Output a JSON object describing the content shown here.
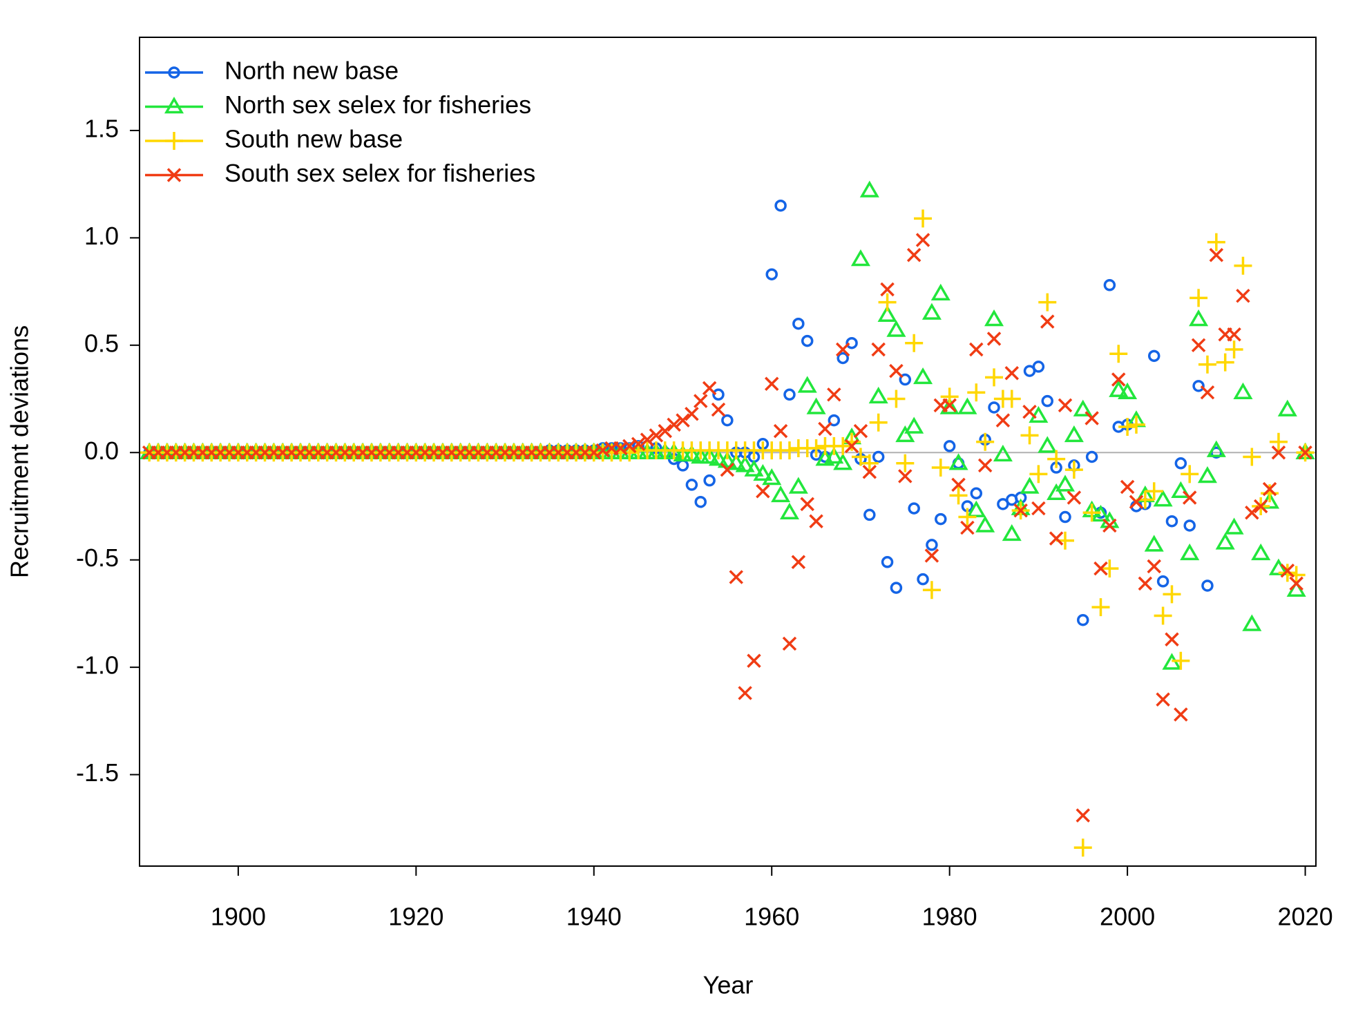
{
  "chart_data": {
    "type": "scatter",
    "x_label": "Year",
    "y_label": "Recruitment deviations",
    "xlim": [
      1888.9,
      2021.2
    ],
    "ylim": [
      -1.926,
      1.934
    ],
    "xticks": [
      1900,
      1920,
      1940,
      1960,
      1980,
      2000,
      2020
    ],
    "yticks": [
      -1.5,
      {
        "value": -1,
        "label": "-1.0"
      },
      -0.5,
      {
        "value": 0,
        "label": "0.0"
      },
      0.5,
      {
        "value": 1,
        "label": "1.0"
      },
      1.5
    ],
    "hline": 0,
    "legend": "top-left",
    "x": [
      1890,
      1891,
      1892,
      1893,
      1894,
      1895,
      1896,
      1897,
      1898,
      1899,
      1900,
      1901,
      1902,
      1903,
      1904,
      1905,
      1906,
      1907,
      1908,
      1909,
      1910,
      1911,
      1912,
      1913,
      1914,
      1915,
      1916,
      1917,
      1918,
      1919,
      1920,
      1921,
      1922,
      1923,
      1924,
      1925,
      1926,
      1927,
      1928,
      1929,
      1930,
      1931,
      1932,
      1933,
      1934,
      1935,
      1936,
      1937,
      1938,
      1939,
      1940,
      1941,
      1942,
      1943,
      1944,
      1945,
      1946,
      1947,
      1948,
      1949,
      1950,
      1951,
      1952,
      1953,
      1954,
      1955,
      1956,
      1957,
      1958,
      1959,
      1960,
      1961,
      1962,
      1963,
      1964,
      1965,
      1966,
      1967,
      1968,
      1969,
      1970,
      1971,
      1972,
      1973,
      1974,
      1975,
      1976,
      1977,
      1978,
      1979,
      1980,
      1981,
      1982,
      1983,
      1984,
      1985,
      1986,
      1987,
      1988,
      1989,
      1990,
      1991,
      1992,
      1993,
      1994,
      1995,
      1996,
      1997,
      1998,
      1999,
      2000,
      2001,
      2002,
      2003,
      2004,
      2005,
      2006,
      2007,
      2008,
      2009,
      2010,
      2011,
      2012,
      2013,
      2014,
      2015,
      2016,
      2017,
      2018,
      2019,
      2020
    ],
    "series": [
      {
        "name": "North new base",
        "color": "#1464e6",
        "marker": "circle",
        "values": [
          0,
          0,
          0,
          0,
          0,
          0,
          0,
          0,
          0,
          0,
          0,
          0,
          0,
          0,
          0,
          0,
          0,
          0,
          0,
          0,
          0,
          0,
          0,
          0,
          0,
          0,
          0,
          0,
          0,
          0,
          0,
          0,
          0,
          0,
          0,
          0,
          0,
          0,
          0,
          0,
          0,
          0,
          0,
          0,
          0,
          0.01,
          0.01,
          0.01,
          0.01,
          0.01,
          0.01,
          0.02,
          0.02,
          0.02,
          0.02,
          0.03,
          0.03,
          0.02,
          0,
          -0.03,
          -0.06,
          -0.15,
          -0.23,
          -0.13,
          0.27,
          0.15,
          0,
          0,
          -0.02,
          0.04,
          0.83,
          1.15,
          0.27,
          0.6,
          0.52,
          -0.01,
          -0.02,
          0.15,
          0.44,
          0.51,
          -0.03,
          -0.29,
          -0.02,
          -0.51,
          -0.63,
          0.34,
          -0.26,
          -0.59,
          -0.43,
          -0.31,
          0.03,
          -0.05,
          -0.25,
          -0.19,
          0.06,
          0.21,
          -0.24,
          -0.22,
          -0.21,
          0.38,
          0.4,
          0.24,
          -0.07,
          -0.3,
          -0.06,
          -0.78,
          -0.02,
          -0.28,
          0.78,
          0.12,
          0.13,
          -0.25,
          -0.24,
          0.45,
          -0.6,
          -0.32,
          -0.05,
          -0.34,
          0.31,
          -0.62,
          0
        ]
      },
      {
        "name": "North sex selex for fisheries",
        "color": "#22e63c",
        "marker": "triangle",
        "values": [
          0,
          0,
          0,
          0,
          0,
          0,
          0,
          0,
          0,
          0,
          0,
          0,
          0,
          0,
          0,
          0,
          0,
          0,
          0,
          0,
          0,
          0,
          0,
          0,
          0,
          0,
          0,
          0,
          0,
          0,
          0,
          0,
          0,
          0,
          0,
          0,
          0,
          0,
          0,
          0,
          0,
          0,
          0,
          0,
          0,
          0,
          0,
          0,
          0,
          0,
          0,
          0,
          0,
          0,
          0,
          0,
          0,
          0,
          0,
          0,
          -0.01,
          -0.01,
          -0.02,
          -0.02,
          -0.03,
          -0.04,
          -0.05,
          -0.06,
          -0.08,
          -0.1,
          -0.12,
          -0.2,
          -0.28,
          -0.16,
          0.31,
          0.21,
          -0.03,
          -0.02,
          -0.05,
          0.07,
          0.9,
          1.22,
          0.26,
          0.64,
          0.57,
          0.08,
          0.12,
          0.35,
          0.65,
          0.74,
          0.21,
          -0.05,
          0.21,
          -0.27,
          -0.34,
          0.62,
          -0.01,
          -0.38,
          -0.26,
          -0.16,
          0.17,
          0.03,
          -0.19,
          -0.15,
          0.08,
          0.2,
          -0.27,
          -0.29,
          -0.32,
          0.29,
          0.28,
          0.15,
          -0.2,
          -0.43,
          -0.22,
          -0.98,
          -0.18,
          -0.47,
          0.62,
          -0.11,
          0.01,
          -0.42,
          -0.35,
          0.28,
          -0.8,
          -0.47,
          -0.23,
          -0.54,
          0.2,
          -0.64,
          0
        ]
      },
      {
        "name": "South new base",
        "color": "#ffd700",
        "marker": "plus",
        "values": [
          0,
          0,
          0,
          0,
          0,
          0,
          0,
          0,
          0,
          0,
          0,
          0,
          0,
          0,
          0,
          0,
          0,
          0,
          0,
          0,
          0,
          0,
          0,
          0,
          0,
          0,
          0,
          0,
          0,
          0,
          0,
          0,
          0,
          0,
          0,
          0,
          0,
          0,
          0,
          0,
          0,
          0,
          0,
          0,
          0,
          0,
          0,
          0,
          0,
          0,
          0,
          0,
          0,
          0,
          0,
          0.01,
          0.01,
          0.01,
          0.01,
          0.01,
          0.01,
          0.01,
          0.01,
          0.01,
          0.01,
          0.01,
          0.01,
          0.01,
          0.01,
          0.01,
          0.01,
          0.01,
          0.01,
          0.02,
          0.02,
          0.02,
          0.03,
          0.03,
          0.03,
          0.05,
          -0.02,
          -0.05,
          0.14,
          0.7,
          0.25,
          -0.05,
          0.51,
          1.09,
          -0.64,
          -0.07,
          0.26,
          -0.2,
          -0.3,
          0.28,
          0.05,
          0.35,
          0.25,
          0.25,
          -0.27,
          0.08,
          -0.1,
          0.7,
          -0.03,
          -0.41,
          -0.08,
          -1.84,
          -0.28,
          -0.72,
          -0.54,
          0.46,
          0.12,
          0.13,
          -0.22,
          -0.18,
          -0.76,
          -0.66,
          -0.97,
          -0.1,
          0.72,
          0.41,
          0.98,
          0.42,
          0.48,
          0.87,
          -0.02,
          -0.25,
          -0.19,
          0.05,
          -0.56,
          -0.57,
          0
        ]
      },
      {
        "name": "South sex selex for fisheries",
        "color": "#f03c14",
        "marker": "cross",
        "values": [
          0,
          0,
          0,
          0,
          0,
          0,
          0,
          0,
          0,
          0,
          0,
          0,
          0,
          0,
          0,
          0,
          0,
          0,
          0,
          0,
          0,
          0,
          0,
          0,
          0,
          0,
          0,
          0,
          0,
          0,
          0,
          0,
          0,
          0,
          0,
          0,
          0,
          0,
          0,
          0,
          0,
          0,
          0,
          0,
          0,
          0,
          0,
          0,
          0,
          0,
          0,
          0.01,
          0.02,
          0.02,
          0.03,
          0.04,
          0.06,
          0.08,
          0.1,
          0.13,
          0.15,
          0.18,
          0.24,
          0.3,
          0.2,
          -0.08,
          -0.58,
          -1.12,
          -0.97,
          -0.18,
          0.32,
          0.1,
          -0.89,
          -0.51,
          -0.24,
          -0.32,
          0.11,
          0.27,
          0.48,
          0.03,
          0.1,
          -0.09,
          0.48,
          0.76,
          0.38,
          -0.11,
          0.92,
          0.99,
          -0.48,
          0.22,
          0.22,
          -0.15,
          -0.35,
          0.48,
          -0.06,
          0.53,
          0.15,
          0.37,
          -0.27,
          0.19,
          -0.26,
          0.61,
          -0.4,
          0.22,
          -0.21,
          -1.69,
          0.16,
          -0.54,
          -0.34,
          0.34,
          -0.16,
          -0.23,
          -0.61,
          -0.53,
          -1.15,
          -0.87,
          -1.22,
          -0.21,
          0.5,
          0.28,
          0.92,
          0.55,
          0.55,
          0.73,
          -0.28,
          -0.25,
          -0.17,
          0,
          -0.55,
          -0.61,
          0
        ]
      }
    ]
  }
}
